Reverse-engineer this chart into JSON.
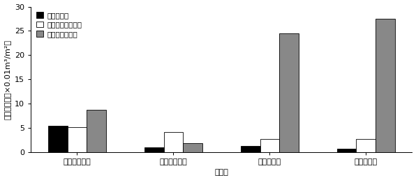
{
  "categories": [
    "不耕起・狭畚",
    "不耕起・広畚",
    "耕起・狭畚",
    "耕起・広畚"
  ],
  "series": [
    {
      "name": "多年生雑草",
      "values": [
        5.4,
        1.0,
        1.2,
        0.7
      ],
      "color": "#000000",
      "edgecolor": "#000000"
    },
    {
      "name": "一年生イネ科雑草",
      "values": [
        5.2,
        4.2,
        2.7,
        2.7
      ],
      "color": "#ffffff",
      "edgecolor": "#000000"
    },
    {
      "name": "一年生広葉雑草",
      "values": [
        8.7,
        1.8,
        24.5,
        27.5
      ],
      "color": "#888888",
      "edgecolor": "#000000"
    }
  ],
  "ylabel": "渟密度占度（×0.01m³/m²）",
  "xlabel": "処理区",
  "ylim": [
    0,
    30
  ],
  "yticks": [
    0,
    5,
    10,
    15,
    20,
    25,
    30
  ],
  "bar_width": 0.2,
  "figsize": [
    5.96,
    2.59
  ],
  "dpi": 100,
  "legend_fontsize": 7.5,
  "axis_fontsize": 8,
  "tick_fontsize": 8
}
